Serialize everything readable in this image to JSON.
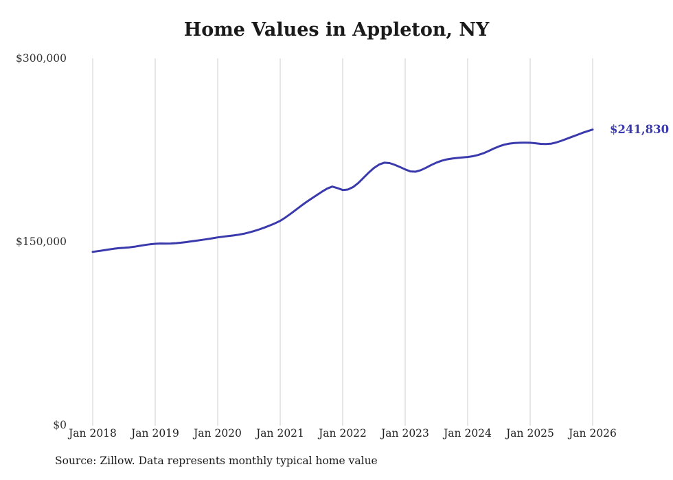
{
  "page": {
    "background": "#ffffff"
  },
  "source_note": "Source: Zillow. Data represents monthly typical home value",
  "chart_data": {
    "type": "line",
    "title": "Home Values in Appleton, NY",
    "xlabel": "",
    "ylabel": "",
    "ylim": [
      0,
      300000
    ],
    "y_tick_labels": [
      "$0",
      "$150,000",
      "$300,000"
    ],
    "x_tick_labels": [
      "Jan 2018",
      "Jan 2019",
      "Jan 2020",
      "Jan 2021",
      "Jan 2022",
      "Jan 2023",
      "Jan 2024",
      "Jan 2025",
      "Jan 2026"
    ],
    "x_interval": "monthly",
    "x_start": "Jan 2018",
    "x_end": "Jan 2026",
    "grid": "vertical-only",
    "legend": "none",
    "line_color": "#3a3aad",
    "gridline_color": "#cccccc",
    "end_label": "$241,830",
    "end_value": 241830,
    "series": [
      {
        "name": "Typical home value",
        "values": [
          142000,
          142600,
          143200,
          143900,
          144500,
          145000,
          145300,
          145700,
          146200,
          146900,
          147600,
          148200,
          148600,
          148800,
          148700,
          148800,
          149100,
          149500,
          150000,
          150600,
          151200,
          151800,
          152400,
          153100,
          153800,
          154400,
          154900,
          155400,
          156000,
          156800,
          157800,
          159000,
          160400,
          161900,
          163500,
          165300,
          167300,
          170100,
          173100,
          176300,
          179500,
          182600,
          185500,
          188300,
          191100,
          193600,
          195300,
          194100,
          192500,
          192900,
          194900,
          198300,
          202500,
          206700,
          210500,
          213300,
          214800,
          214500,
          213100,
          211300,
          209300,
          207700,
          207500,
          208700,
          210700,
          212900,
          214900,
          216400,
          217500,
          218200,
          218700,
          219100,
          219500,
          220100,
          221100,
          222500,
          224300,
          226300,
          228100,
          229500,
          230400,
          230900,
          231100,
          231200,
          231100,
          230700,
          230200,
          230000,
          230300,
          231300,
          232700,
          234300,
          235900,
          237500,
          239100,
          240500,
          241830
        ]
      }
    ]
  }
}
